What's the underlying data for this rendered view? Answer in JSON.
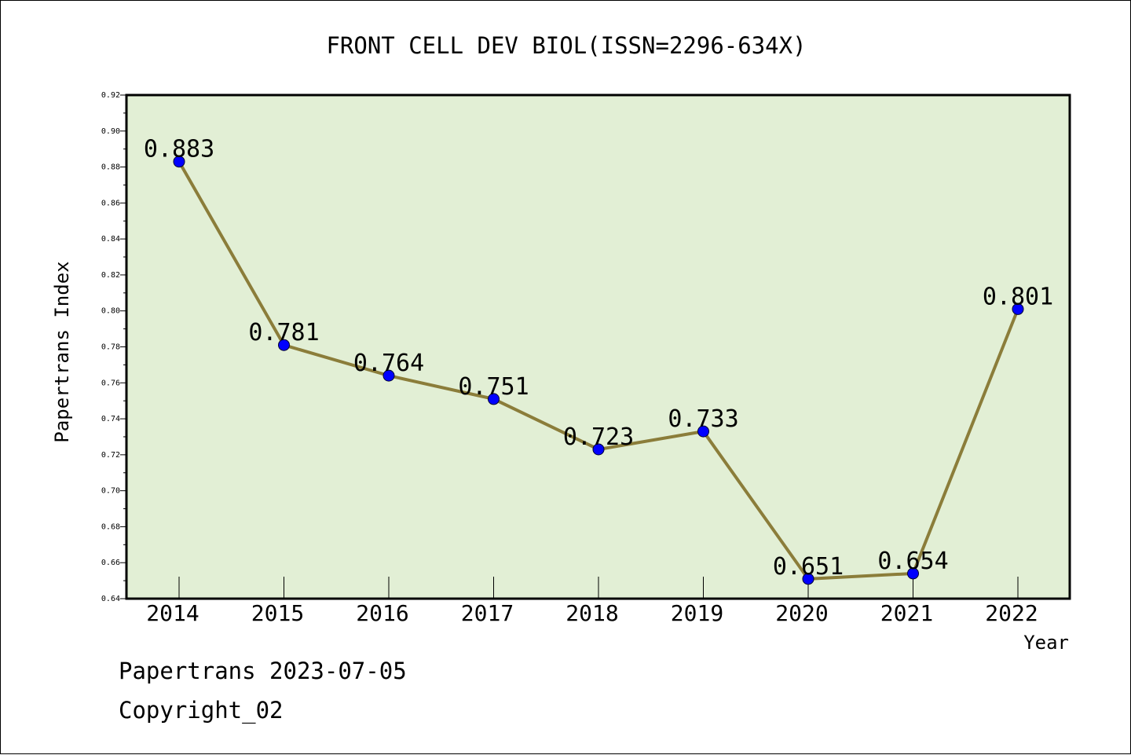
{
  "chart_data": {
    "type": "line",
    "title": "FRONT CELL DEV BIOL(ISSN=2296-634X)",
    "xlabel": "Year",
    "ylabel": "Papertrans Index",
    "categories": [
      "2014",
      "2015",
      "2016",
      "2017",
      "2018",
      "2019",
      "2020",
      "2021",
      "2022"
    ],
    "values": [
      0.883,
      0.781,
      0.764,
      0.751,
      0.723,
      0.733,
      0.651,
      0.654,
      0.801
    ],
    "data_labels": [
      "0.883",
      "0.781",
      "0.764",
      "0.751",
      "0.723",
      "0.733",
      "0.651",
      "0.654",
      "0.801"
    ],
    "ylim": [
      0.64,
      0.92
    ],
    "yticks": [
      "0.64",
      "0.66",
      "0.68",
      "0.70",
      "0.72",
      "0.74",
      "0.76",
      "0.78",
      "0.80",
      "0.82",
      "0.84",
      "0.86",
      "0.88",
      "0.90",
      "0.92"
    ],
    "grid": false,
    "legend": "none",
    "colors": {
      "plot_background": "#e2efd5",
      "line": "#8b7d3a",
      "marker": "#0000ff"
    }
  },
  "footer": {
    "line1": "Papertrans 2023-07-05",
    "line2": "Copyright_02"
  }
}
